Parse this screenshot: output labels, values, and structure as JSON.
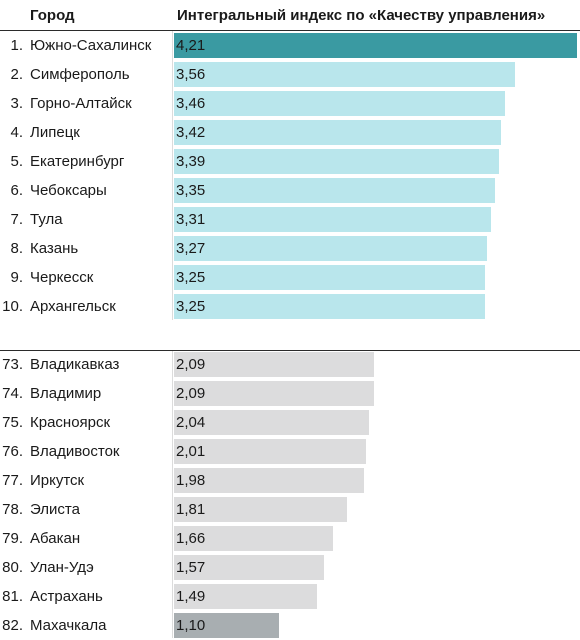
{
  "header": {
    "city_label": "Город",
    "index_label": "Интегральный индекс по «Качеству управления»"
  },
  "colors": {
    "top_highlight": "#3a9aa2",
    "top": "#b9e6ec",
    "bottom": "#dcdcdd",
    "bottom_highlight": "#a8aeb1"
  },
  "chart_data": {
    "type": "bar",
    "orientation": "horizontal",
    "x_max": 4.21,
    "groups": [
      {
        "name": "top",
        "rows": [
          {
            "rank": "1.",
            "city": "Южно-Сахалинск",
            "value": 4.21,
            "label": "4,21",
            "highlight": true
          },
          {
            "rank": "2.",
            "city": "Симферополь",
            "value": 3.56,
            "label": "3,56"
          },
          {
            "rank": "3.",
            "city": "Горно-Алтайск",
            "value": 3.46,
            "label": "3,46"
          },
          {
            "rank": "4.",
            "city": "Липецк",
            "value": 3.42,
            "label": "3,42"
          },
          {
            "rank": "5.",
            "city": "Екатеринбург",
            "value": 3.39,
            "label": "3,39"
          },
          {
            "rank": "6.",
            "city": "Чебоксары",
            "value": 3.35,
            "label": "3,35"
          },
          {
            "rank": "7.",
            "city": "Тула",
            "value": 3.31,
            "label": "3,31"
          },
          {
            "rank": "8.",
            "city": "Казань",
            "value": 3.27,
            "label": "3,27"
          },
          {
            "rank": "9.",
            "city": "Черкесск",
            "value": 3.25,
            "label": "3,25"
          },
          {
            "rank": "10.",
            "city": "Архангельск",
            "value": 3.25,
            "label": "3,25"
          }
        ]
      },
      {
        "name": "bottom",
        "rows": [
          {
            "rank": "73.",
            "city": "Владикавказ",
            "value": 2.09,
            "label": "2,09"
          },
          {
            "rank": "74.",
            "city": "Владимир",
            "value": 2.09,
            "label": "2,09"
          },
          {
            "rank": "75.",
            "city": "Красноярск",
            "value": 2.04,
            "label": "2,04"
          },
          {
            "rank": "76.",
            "city": "Владивосток",
            "value": 2.01,
            "label": "2,01"
          },
          {
            "rank": "77.",
            "city": "Иркутск",
            "value": 1.98,
            "label": "1,98"
          },
          {
            "rank": "78.",
            "city": "Элиста",
            "value": 1.81,
            "label": "1,81"
          },
          {
            "rank": "79.",
            "city": "Абакан",
            "value": 1.66,
            "label": "1,66"
          },
          {
            "rank": "80.",
            "city": "Улан-Удэ",
            "value": 1.57,
            "label": "1,57"
          },
          {
            "rank": "81.",
            "city": "Астрахань",
            "value": 1.49,
            "label": "1,49"
          },
          {
            "rank": "82.",
            "city": "Махачкала",
            "value": 1.1,
            "label": "1,10",
            "highlight": true
          }
        ]
      }
    ]
  }
}
